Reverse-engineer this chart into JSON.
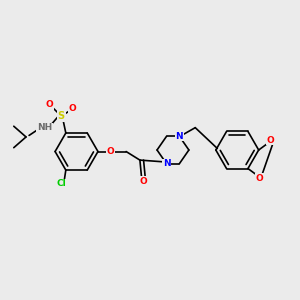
{
  "bg_color": "#ebebeb",
  "bond_color": "#000000",
  "atom_colors": {
    "O": "#ff0000",
    "N": "#0000ff",
    "S": "#cccc00",
    "Cl": "#00cc00",
    "H": "#6a6a6a",
    "C": "#000000"
  },
  "line_width": 1.2,
  "font_size": 6.5,
  "figsize": [
    3.0,
    3.0
  ],
  "dpi": 100
}
